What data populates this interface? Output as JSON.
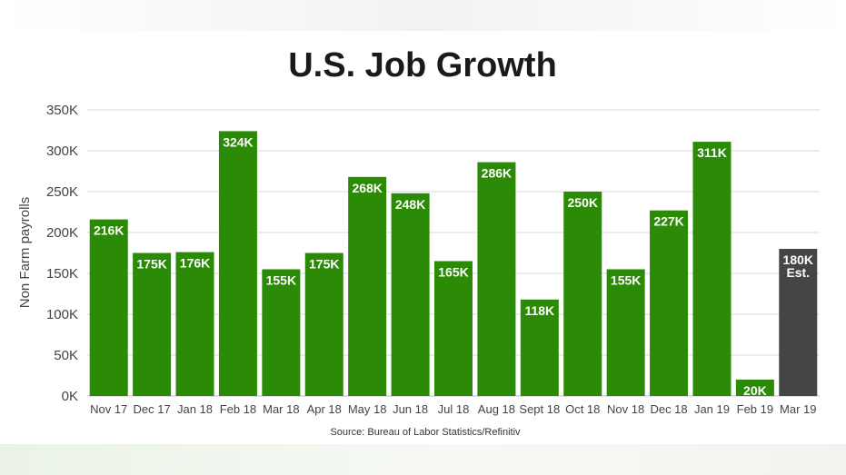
{
  "chart_data": {
    "type": "bar",
    "title": "U.S. Job Growth",
    "xlabel": "",
    "ylabel": "Non Farm payrolls",
    "ylim": [
      0,
      350000
    ],
    "yticks": [
      "0K",
      "50K",
      "100K",
      "150K",
      "200K",
      "250K",
      "300K",
      "350K"
    ],
    "grid": true,
    "categories": [
      "Nov 17",
      "Dec 17",
      "Jan 18",
      "Feb 18",
      "Mar 18",
      "Apr 18",
      "May 18",
      "Jun 18",
      "Jul 18",
      "Aug 18",
      "Sept 18",
      "Oct 18",
      "Nov 18",
      "Dec 18",
      "Jan 19",
      "Feb 19",
      "Mar 19"
    ],
    "values": [
      216000,
      175000,
      176000,
      324000,
      155000,
      175000,
      268000,
      248000,
      165000,
      286000,
      118000,
      250000,
      155000,
      227000,
      311000,
      20000,
      180000
    ],
    "data_labels": [
      "216K",
      "175K",
      "176K",
      "324K",
      "155K",
      "175K",
      "268K",
      "248K",
      "165K",
      "286K",
      "118K",
      "250K",
      "155K",
      "227K",
      "311K",
      "20K",
      "180K"
    ],
    "estimate_note": "Est.",
    "estimate_index": 16,
    "colors": {
      "actual": "#2b8a06",
      "estimate": "#454545",
      "grid": "#d9d9d9"
    },
    "source": "Source: Bureau of Labor Statistics/Refinitiv"
  }
}
